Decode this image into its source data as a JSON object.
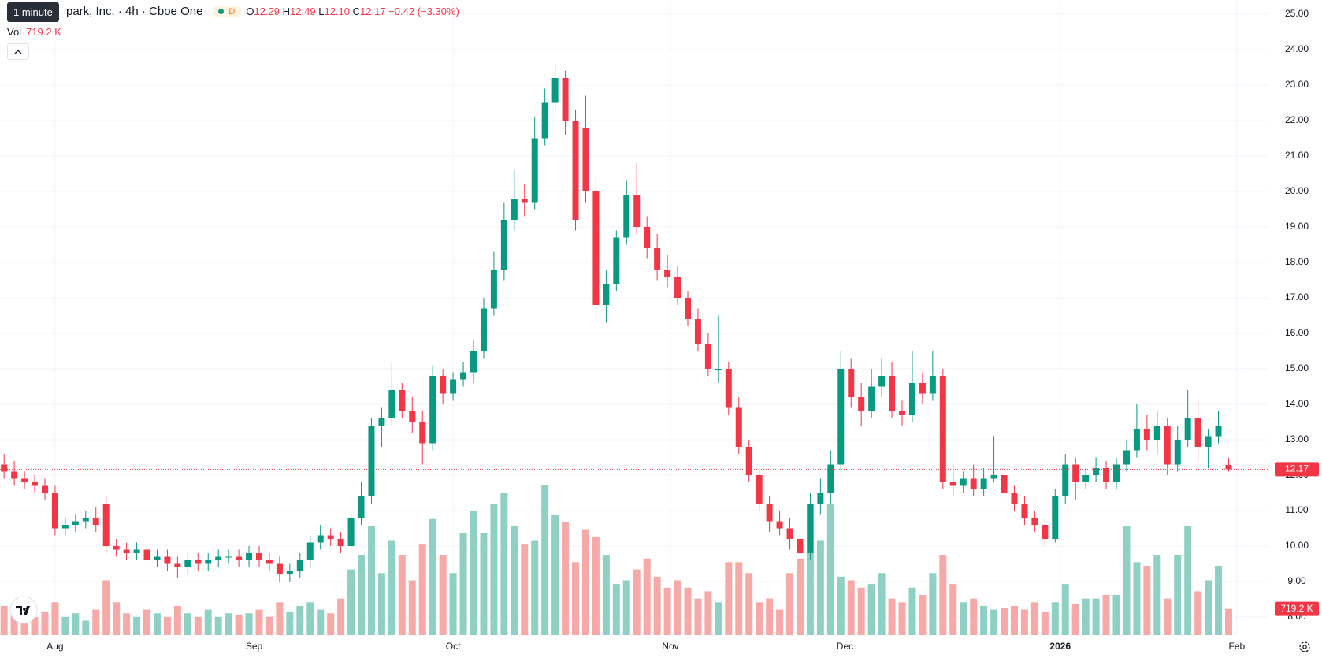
{
  "header": {
    "tooltip": "1 minute",
    "title": "park, Inc. · 4h · Cboe One",
    "badge": "D",
    "legend": {
      "o": "O",
      "open": "12.29",
      "h": "H",
      "high": "12.49",
      "l": "L",
      "low": "12.10",
      "c": "C",
      "close": "12.17",
      "change": "−0.42 (−3.30%)"
    },
    "vol": "Vol"
  },
  "chart_data": {
    "type": "candlestick",
    "up_color": "#089981",
    "down_color": "#f23645",
    "volume_up_color": "#8fd0c4",
    "volume_down_color": "#f7a9a7",
    "xlim": [
      -0.4,
      123.9
    ],
    "ylim": [
      8,
      25
    ],
    "grid": true,
    "xticks": [
      {
        "value": 5,
        "label": "Aug"
      },
      {
        "value": 24.5,
        "label": "Sep"
      },
      {
        "value": 44,
        "label": "Oct"
      },
      {
        "value": 65.3,
        "label": "Nov"
      },
      {
        "value": 82.4,
        "label": "Dec"
      },
      {
        "value": 103.5,
        "label": "2026"
      },
      {
        "value": 120.8,
        "label": "Feb"
      }
    ],
    "yticks": [
      {
        "value": 8,
        "label": "8.00"
      },
      {
        "value": 9,
        "label": "9.00"
      },
      {
        "value": 10,
        "label": "10.00"
      },
      {
        "value": 11,
        "label": "11.00"
      },
      {
        "value": 12,
        "label": "12.00"
      },
      {
        "value": 13,
        "label": "13.00"
      },
      {
        "value": 14,
        "label": "14.00"
      },
      {
        "value": 15,
        "label": "15.00"
      },
      {
        "value": 16,
        "label": "16.00"
      },
      {
        "value": 17,
        "label": "17.00"
      },
      {
        "value": 18,
        "label": "18.00"
      },
      {
        "value": 19,
        "label": "19.00"
      },
      {
        "value": 20,
        "label": "20.00"
      },
      {
        "value": 21,
        "label": "21.00"
      },
      {
        "value": 22,
        "label": "22.00"
      },
      {
        "value": 23,
        "label": "23.00"
      },
      {
        "value": 24,
        "label": "24.00"
      },
      {
        "value": 25,
        "label": "25.00"
      }
    ],
    "open": [
      12.3,
      12.1,
      11.9,
      11.8,
      11.7,
      11.5,
      10.5,
      10.6,
      10.7,
      10.8,
      11.2,
      10.0,
      9.9,
      9.8,
      9.9,
      9.6,
      9.7,
      9.5,
      9.4,
      9.6,
      9.5,
      9.6,
      9.7,
      9.7,
      9.6,
      9.8,
      9.6,
      9.5,
      9.2,
      9.3,
      9.6,
      10.1,
      10.3,
      10.2,
      10.0,
      10.8,
      11.4,
      13.4,
      13.6,
      14.4,
      13.8,
      13.5,
      12.9,
      14.8,
      14.3,
      14.7,
      14.9,
      15.5,
      16.7,
      17.8,
      19.2,
      19.8,
      19.7,
      21.5,
      22.5,
      23.2,
      22.0,
      21.8,
      20.0,
      16.8,
      17.4,
      18.7,
      19.9,
      19.0,
      18.4,
      17.8,
      17.6,
      17.0,
      16.4,
      15.7,
      15.0,
      15.0,
      13.9,
      12.8,
      12.0,
      11.2,
      10.7,
      10.5,
      10.2,
      9.8,
      11.2,
      11.5,
      12.3,
      15.0,
      14.2,
      13.8,
      14.5,
      14.8,
      13.8,
      13.7,
      14.6,
      14.3,
      14.8,
      11.8,
      11.7,
      11.9,
      11.6,
      11.9,
      12.0,
      11.5,
      11.2,
      10.8,
      10.6,
      10.2,
      11.4,
      12.3,
      11.8,
      12.0,
      12.2,
      11.8,
      12.3,
      12.7,
      13.3,
      13.0,
      13.4,
      12.3,
      13.0,
      13.6,
      12.8,
      13.1,
      12.29
    ],
    "high": [
      12.6,
      12.4,
      12.1,
      12.0,
      11.9,
      11.7,
      10.8,
      10.9,
      11.0,
      11.1,
      11.4,
      10.2,
      10.1,
      10.1,
      10.1,
      9.9,
      9.9,
      9.7,
      9.8,
      9.8,
      9.8,
      9.9,
      9.9,
      9.9,
      10.0,
      10.0,
      9.8,
      9.7,
      9.5,
      9.8,
      10.3,
      10.6,
      10.5,
      10.4,
      11.0,
      11.8,
      13.6,
      13.9,
      15.2,
      14.6,
      14.2,
      13.8,
      15.1,
      15.0,
      14.9,
      15.2,
      15.8,
      17.0,
      18.3,
      19.7,
      20.6,
      20.2,
      22.1,
      22.9,
      23.6,
      23.4,
      22.3,
      22.7,
      20.4,
      17.8,
      18.9,
      20.3,
      20.8,
      19.3,
      18.8,
      18.2,
      17.9,
      17.2,
      16.7,
      16.0,
      16.5,
      15.2,
      14.2,
      13.0,
      12.2,
      11.4,
      11.0,
      10.8,
      10.4,
      11.5,
      11.9,
      12.7,
      15.5,
      15.3,
      14.6,
      15.0,
      15.3,
      15.2,
      14.1,
      15.5,
      14.9,
      15.5,
      15.0,
      12.3,
      12.1,
      12.3,
      12.2,
      13.1,
      12.2,
      11.7,
      11.4,
      11.0,
      10.8,
      11.6,
      12.6,
      12.5,
      12.2,
      12.5,
      12.4,
      12.5,
      13.0,
      14.0,
      13.7,
      13.8,
      13.6,
      13.4,
      14.4,
      14.1,
      13.3,
      13.8,
      12.49
    ],
    "low": [
      11.9,
      11.7,
      11.6,
      11.5,
      11.3,
      10.3,
      10.3,
      10.4,
      10.5,
      10.4,
      9.8,
      9.7,
      9.6,
      9.6,
      9.4,
      9.4,
      9.3,
      9.1,
      9.2,
      9.3,
      9.3,
      9.4,
      9.5,
      9.4,
      9.4,
      9.4,
      9.3,
      9.0,
      9.0,
      9.1,
      9.4,
      9.9,
      10.0,
      9.8,
      9.8,
      10.6,
      11.2,
      12.8,
      13.4,
      13.6,
      13.2,
      12.3,
      12.7,
      14.0,
      14.1,
      14.5,
      14.6,
      15.3,
      16.5,
      17.5,
      18.9,
      19.3,
      19.5,
      21.3,
      22.3,
      21.6,
      18.9,
      19.7,
      16.4,
      16.3,
      17.2,
      18.5,
      18.8,
      18.1,
      17.5,
      17.3,
      16.8,
      16.2,
      15.5,
      14.8,
      14.6,
      13.7,
      12.6,
      11.8,
      11.0,
      10.4,
      10.3,
      9.9,
      9.4,
      9.6,
      10.9,
      11.2,
      12.1,
      13.9,
      13.4,
      13.6,
      14.2,
      13.6,
      13.4,
      13.5,
      14.0,
      14.1,
      11.6,
      11.4,
      11.5,
      11.4,
      11.4,
      11.8,
      11.3,
      11.0,
      10.6,
      10.4,
      10.0,
      10.1,
      11.2,
      11.3,
      11.6,
      11.8,
      11.6,
      11.6,
      12.1,
      12.5,
      12.7,
      12.6,
      12.0,
      12.1,
      12.8,
      12.4,
      12.2,
      12.9,
      12.1
    ],
    "close": [
      12.1,
      11.9,
      11.8,
      11.7,
      11.5,
      10.5,
      10.6,
      10.7,
      10.8,
      10.6,
      10.0,
      9.9,
      9.8,
      9.9,
      9.6,
      9.7,
      9.5,
      9.4,
      9.6,
      9.5,
      9.6,
      9.7,
      9.7,
      9.6,
      9.8,
      9.6,
      9.5,
      9.2,
      9.3,
      9.6,
      10.1,
      10.3,
      10.2,
      10.0,
      10.8,
      11.4,
      13.4,
      13.6,
      14.4,
      13.8,
      13.5,
      12.9,
      14.8,
      14.3,
      14.7,
      14.9,
      15.5,
      16.7,
      17.8,
      19.2,
      19.8,
      19.7,
      21.5,
      22.5,
      23.2,
      22.0,
      19.2,
      20.0,
      16.8,
      17.4,
      18.7,
      19.9,
      19.0,
      18.4,
      17.8,
      17.6,
      17.0,
      16.4,
      15.7,
      15.0,
      15.0,
      13.9,
      12.8,
      12.0,
      11.2,
      10.7,
      10.5,
      10.2,
      9.8,
      11.2,
      11.5,
      12.3,
      15.0,
      14.2,
      13.8,
      14.5,
      14.8,
      13.8,
      13.7,
      14.6,
      14.3,
      14.8,
      11.8,
      11.7,
      11.9,
      11.6,
      11.9,
      12.0,
      11.5,
      11.2,
      10.8,
      10.6,
      10.2,
      11.4,
      12.3,
      11.8,
      12.0,
      12.2,
      11.8,
      12.3,
      12.7,
      13.3,
      13.0,
      13.4,
      12.3,
      13.0,
      13.6,
      12.8,
      13.1,
      13.4,
      12.17
    ],
    "volume": [
      800,
      600,
      700,
      500,
      650,
      900,
      500,
      600,
      400,
      700,
      1500,
      900,
      600,
      500,
      700,
      600,
      500,
      800,
      600,
      500,
      700,
      500,
      600,
      550,
      600,
      700,
      500,
      900,
      650,
      800,
      900,
      700,
      600,
      1000,
      1800,
      2200,
      3000,
      1700,
      2600,
      2200,
      1500,
      2500,
      3200,
      2200,
      1700,
      2800,
      3400,
      2800,
      3600,
      3900,
      3000,
      2500,
      2600,
      4100,
      3300,
      3100,
      2000,
      2900,
      2700,
      2200,
      1400,
      1500,
      1800,
      2100,
      1600,
      1300,
      1500,
      1300,
      1000,
      1200,
      900,
      2000,
      2000,
      1700,
      900,
      1000,
      700,
      1700,
      2100,
      3600,
      2600,
      3600,
      1600,
      1500,
      1300,
      1400,
      1700,
      1000,
      900,
      1300,
      1100,
      1700,
      2200,
      1400,
      900,
      1000,
      800,
      700,
      750,
      800,
      700,
      900,
      650,
      900,
      1400,
      850,
      1000,
      1000,
      1100,
      1100,
      3000,
      2000,
      1900,
      2200,
      1000,
      2200,
      3000,
      1200,
      1500,
      1900,
      719.2
    ],
    "volume_label": "719.2 K"
  }
}
